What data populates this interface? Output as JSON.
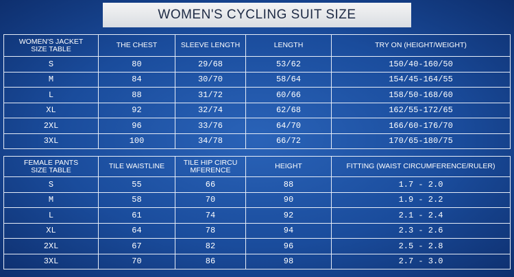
{
  "title": "WOMEN'S CYCLING SUIT SIZE",
  "jacket": {
    "header": [
      "WOMEN'S JACKET\nSIZE TABLE",
      "THE CHEST",
      "SLEEVE LENGTH",
      "LENGTH",
      "TRY ON (HEIGHT/WEIGHT)"
    ],
    "rows": [
      [
        "S",
        "80",
        "29/68",
        "53/62",
        "150/40-160/50"
      ],
      [
        "M",
        "84",
        "30/70",
        "58/64",
        "154/45-164/55"
      ],
      [
        "L",
        "88",
        "31/72",
        "60/66",
        "158/50-168/60"
      ],
      [
        "XL",
        "92",
        "32/74",
        "62/68",
        "162/55-172/65"
      ],
      [
        "2XL",
        "96",
        "33/76",
        "64/70",
        "166/60-176/70"
      ],
      [
        "3XL",
        "100",
        "34/78",
        "66/72",
        "170/65-180/75"
      ]
    ]
  },
  "pants": {
    "header": [
      "FEMALE PANTS\nSIZE TABLE",
      "TILE WAISTLINE",
      "TILE HIP CIRCU\nMFERENCE",
      "HEIGHT",
      "FITTING (WAIST CIRCUMFERENCE/RULER)"
    ],
    "rows": [
      [
        "S",
        "55",
        "66",
        "88",
        "1.7 - 2.0"
      ],
      [
        "M",
        "58",
        "70",
        "90",
        "1.9 - 2.2"
      ],
      [
        "L",
        "61",
        "74",
        "92",
        "2.1 - 2.4"
      ],
      [
        "XL",
        "64",
        "78",
        "94",
        "2.3 - 2.6"
      ],
      [
        "2XL",
        "67",
        "82",
        "96",
        "2.5 - 2.8"
      ],
      [
        "3XL",
        "70",
        "86",
        "98",
        "2.7 - 3.0"
      ]
    ]
  }
}
